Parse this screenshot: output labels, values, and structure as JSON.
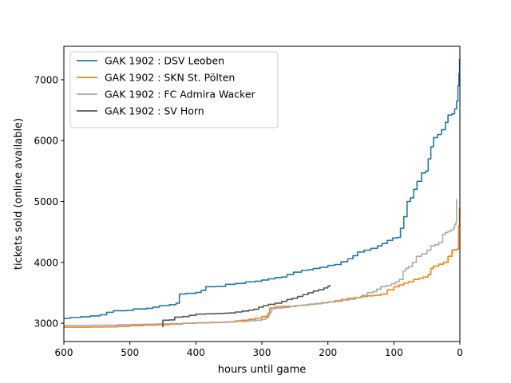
{
  "chart_data": {
    "type": "line",
    "title": "",
    "xlabel": "hours until game",
    "ylabel": "tickets sold (online available)",
    "xlim": [
      600,
      0
    ],
    "ylim": [
      2700,
      7550
    ],
    "x_inverted": true,
    "x_ticks": [
      600,
      500,
      400,
      300,
      200,
      100,
      0
    ],
    "y_ticks": [
      3000,
      4000,
      5000,
      6000,
      7000
    ],
    "grid": false,
    "legend": {
      "placement": "top-left"
    },
    "series": [
      {
        "name": "GAK 1902 : DSV Leoben",
        "color": "#1f77b4",
        "points": [
          [
            600,
            3080
          ],
          [
            590,
            3095
          ],
          [
            575,
            3105
          ],
          [
            560,
            3120
          ],
          [
            545,
            3140
          ],
          [
            535,
            3180
          ],
          [
            525,
            3205
          ],
          [
            505,
            3210
          ],
          [
            495,
            3235
          ],
          [
            475,
            3245
          ],
          [
            465,
            3265
          ],
          [
            455,
            3290
          ],
          [
            440,
            3305
          ],
          [
            430,
            3330
          ],
          [
            425,
            3480
          ],
          [
            415,
            3490
          ],
          [
            400,
            3505
          ],
          [
            392,
            3540
          ],
          [
            385,
            3600
          ],
          [
            370,
            3605
          ],
          [
            355,
            3640
          ],
          [
            340,
            3655
          ],
          [
            325,
            3680
          ],
          [
            310,
            3690
          ],
          [
            300,
            3710
          ],
          [
            290,
            3730
          ],
          [
            280,
            3750
          ],
          [
            270,
            3760
          ],
          [
            262,
            3800
          ],
          [
            252,
            3840
          ],
          [
            240,
            3870
          ],
          [
            230,
            3880
          ],
          [
            222,
            3900
          ],
          [
            212,
            3920
          ],
          [
            200,
            3950
          ],
          [
            190,
            3965
          ],
          [
            180,
            4010
          ],
          [
            170,
            4060
          ],
          [
            162,
            4110
          ],
          [
            155,
            4170
          ],
          [
            145,
            4200
          ],
          [
            135,
            4230
          ],
          [
            125,
            4270
          ],
          [
            118,
            4310
          ],
          [
            110,
            4360
          ],
          [
            102,
            4400
          ],
          [
            95,
            4410
          ],
          [
            90,
            4560
          ],
          [
            85,
            4750
          ],
          [
            80,
            5000
          ],
          [
            75,
            5060
          ],
          [
            70,
            5200
          ],
          [
            65,
            5330
          ],
          [
            58,
            5470
          ],
          [
            52,
            5500
          ],
          [
            48,
            5700
          ],
          [
            44,
            5900
          ],
          [
            40,
            6050
          ],
          [
            34,
            6100
          ],
          [
            28,
            6180
          ],
          [
            22,
            6300
          ],
          [
            18,
            6420
          ],
          [
            12,
            6440
          ],
          [
            8,
            6520
          ],
          [
            5,
            6650
          ],
          [
            3,
            6900
          ],
          [
            1.5,
            7100
          ],
          [
            0.5,
            7340
          ]
        ]
      },
      {
        "name": "GAK 1902 : SKN St. Pölten",
        "color": "#ff7f0e",
        "points": [
          [
            600,
            2935
          ],
          [
            580,
            2935
          ],
          [
            560,
            2938
          ],
          [
            540,
            2940
          ],
          [
            520,
            2950
          ],
          [
            500,
            2960
          ],
          [
            480,
            2970
          ],
          [
            460,
            2975
          ],
          [
            440,
            2985
          ],
          [
            420,
            3000
          ],
          [
            400,
            3005
          ],
          [
            380,
            3010
          ],
          [
            360,
            3015
          ],
          [
            350,
            3025
          ],
          [
            340,
            3040
          ],
          [
            330,
            3050
          ],
          [
            320,
            3065
          ],
          [
            310,
            3085
          ],
          [
            300,
            3110
          ],
          [
            292,
            3140
          ],
          [
            288,
            3250
          ],
          [
            280,
            3270
          ],
          [
            270,
            3280
          ],
          [
            260,
            3280
          ],
          [
            250,
            3290
          ],
          [
            240,
            3295
          ],
          [
            230,
            3310
          ],
          [
            220,
            3320
          ],
          [
            210,
            3335
          ],
          [
            200,
            3350
          ],
          [
            190,
            3370
          ],
          [
            180,
            3390
          ],
          [
            170,
            3410
          ],
          [
            160,
            3420
          ],
          [
            150,
            3440
          ],
          [
            140,
            3450
          ],
          [
            130,
            3460
          ],
          [
            120,
            3480
          ],
          [
            110,
            3550
          ],
          [
            100,
            3600
          ],
          [
            92,
            3630
          ],
          [
            85,
            3660
          ],
          [
            78,
            3680
          ],
          [
            70,
            3720
          ],
          [
            62,
            3740
          ],
          [
            55,
            3760
          ],
          [
            48,
            3800
          ],
          [
            44,
            3900
          ],
          [
            40,
            3940
          ],
          [
            32,
            3970
          ],
          [
            25,
            4000
          ],
          [
            18,
            4100
          ],
          [
            12,
            4200
          ],
          [
            8,
            4210
          ],
          [
            4,
            4220
          ],
          [
            2,
            4600
          ],
          [
            0.5,
            4900
          ]
        ]
      },
      {
        "name": "GAK 1902 : FC Admira Wacker",
        "color": "#aaaaaa",
        "points": [
          [
            600,
            2965
          ],
          [
            580,
            2965
          ],
          [
            560,
            2968
          ],
          [
            540,
            2970
          ],
          [
            520,
            2975
          ],
          [
            500,
            2980
          ],
          [
            480,
            2985
          ],
          [
            460,
            2990
          ],
          [
            440,
            2995
          ],
          [
            420,
            3000
          ],
          [
            400,
            3010
          ],
          [
            380,
            3015
          ],
          [
            360,
            3020
          ],
          [
            340,
            3030
          ],
          [
            320,
            3040
          ],
          [
            310,
            3050
          ],
          [
            300,
            3065
          ],
          [
            294,
            3090
          ],
          [
            290,
            3180
          ],
          [
            285,
            3240
          ],
          [
            278,
            3250
          ],
          [
            268,
            3260
          ],
          [
            258,
            3275
          ],
          [
            248,
            3290
          ],
          [
            238,
            3300
          ],
          [
            228,
            3315
          ],
          [
            218,
            3325
          ],
          [
            208,
            3340
          ],
          [
            198,
            3350
          ],
          [
            188,
            3360
          ],
          [
            178,
            3380
          ],
          [
            168,
            3395
          ],
          [
            158,
            3420
          ],
          [
            148,
            3460
          ],
          [
            140,
            3500
          ],
          [
            132,
            3520
          ],
          [
            126,
            3560
          ],
          [
            120,
            3600
          ],
          [
            112,
            3620
          ],
          [
            104,
            3650
          ],
          [
            98,
            3680
          ],
          [
            92,
            3720
          ],
          [
            86,
            3860
          ],
          [
            82,
            3900
          ],
          [
            78,
            3930
          ],
          [
            72,
            4000
          ],
          [
            66,
            4100
          ],
          [
            58,
            4140
          ],
          [
            50,
            4200
          ],
          [
            44,
            4270
          ],
          [
            38,
            4290
          ],
          [
            32,
            4330
          ],
          [
            26,
            4460
          ],
          [
            22,
            4490
          ],
          [
            18,
            4510
          ],
          [
            14,
            4530
          ],
          [
            10,
            4560
          ],
          [
            8,
            4620
          ],
          [
            6,
            4660
          ],
          [
            5,
            5040
          ]
        ]
      },
      {
        "name": "GAK 1902 : SV Horn",
        "color": "#555555",
        "points": [
          [
            450,
            2935
          ],
          [
            450,
            3050
          ],
          [
            440,
            3055
          ],
          [
            432,
            3100
          ],
          [
            420,
            3110
          ],
          [
            410,
            3130
          ],
          [
            400,
            3150
          ],
          [
            385,
            3155
          ],
          [
            370,
            3160
          ],
          [
            358,
            3165
          ],
          [
            350,
            3170
          ],
          [
            340,
            3185
          ],
          [
            330,
            3200
          ],
          [
            320,
            3215
          ],
          [
            312,
            3230
          ],
          [
            305,
            3265
          ],
          [
            298,
            3290
          ],
          [
            290,
            3310
          ],
          [
            280,
            3330
          ],
          [
            270,
            3360
          ],
          [
            262,
            3390
          ],
          [
            254,
            3410
          ],
          [
            246,
            3440
          ],
          [
            238,
            3470
          ],
          [
            230,
            3500
          ],
          [
            222,
            3530
          ],
          [
            214,
            3550
          ],
          [
            206,
            3580
          ],
          [
            200,
            3610
          ],
          [
            197,
            3630
          ]
        ]
      }
    ]
  }
}
